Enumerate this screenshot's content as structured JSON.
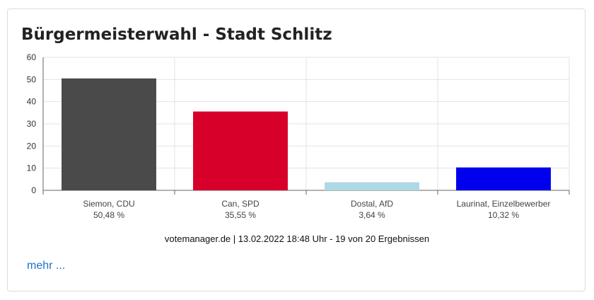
{
  "title": "Bürgermeisterwahl - Stadt Schlitz",
  "footer": "votemanager.de | 13.02.2022 18:48 Uhr - 19 von 20 Ergebnissen",
  "more_link": "mehr ...",
  "chart_data": {
    "type": "bar",
    "categories": [
      "Siemon, CDU",
      "Can, SPD",
      "Dostal, AfD",
      "Laurinat, Einzelbewerber"
    ],
    "values": [
      50.48,
      35.55,
      3.64,
      10.32
    ],
    "value_labels": [
      "50,48 %",
      "35,55 %",
      "3,64 %",
      "10,32 %"
    ],
    "colors": [
      "#4a4a4a",
      "#d6002a",
      "#add8e6",
      "#0000ee"
    ],
    "yticks": [
      0,
      10,
      20,
      30,
      40,
      50,
      60
    ],
    "ylim": [
      0,
      60
    ],
    "grid": true,
    "title": "",
    "xlabel": "",
    "ylabel": ""
  }
}
